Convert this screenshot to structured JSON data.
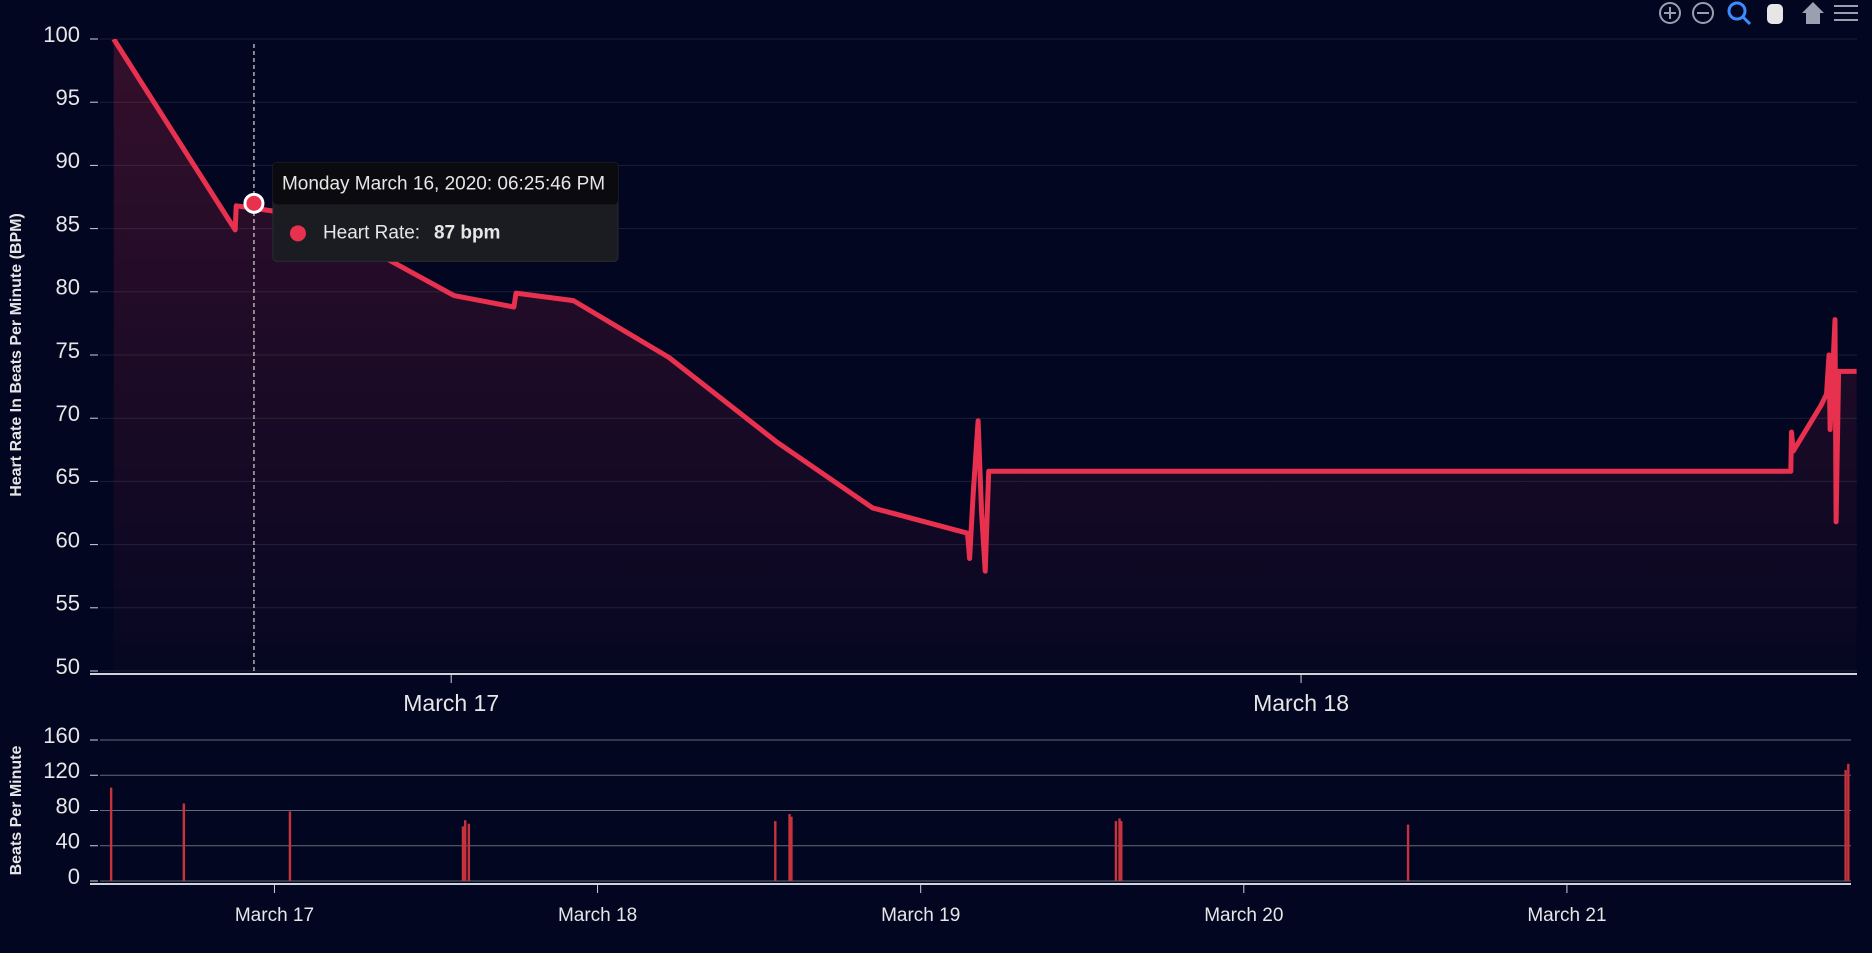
{
  "chart_data": [
    {
      "type": "line",
      "y_label": "Heart Rate In Beats Per Minute (BPM)",
      "x": [
        14.47,
        16.33,
        17.9,
        17.93,
        19.7,
        22.06,
        24.08,
        25.77,
        25.83,
        27.45,
        30.15,
        33.2,
        35.9,
        38.58,
        38.64,
        38.74,
        38.88,
        38.98,
        39.08,
        39.18,
        61.83,
        61.85,
        61.9,
        62.68,
        62.84,
        62.91,
        62.94,
        63.08,
        63.11,
        63.18,
        63.69
      ],
      "values": [
        100,
        91.8,
        84.9,
        86.8,
        86.1,
        82.8,
        79.7,
        78.8,
        79.9,
        79.3,
        74.8,
        68.1,
        62.9,
        60.9,
        58.9,
        63.9,
        69.8,
        62.5,
        57.9,
        65.8,
        65.8,
        68.9,
        67.4,
        71,
        71.9,
        75,
        69.1,
        77.8,
        61.8,
        73.7,
        73.7
      ],
      "color": "#e8304f",
      "xlim": [
        13.8,
        63.7
      ],
      "xticks": [
        {
          "value": 24,
          "label": "March 17"
        },
        {
          "value": 48,
          "label": "March 18"
        }
      ],
      "ylim": [
        50,
        100
      ],
      "yticks": [
        50,
        55,
        60,
        65,
        70,
        75,
        80,
        85,
        90,
        95,
        100
      ],
      "grid": true,
      "tooltip": {
        "title": "Monday March 16, 2020: 06:25:46 PM",
        "label": "Heart Rate:",
        "x": 18.43,
        "value": 87,
        "value_label": "87 bpm"
      }
    },
    {
      "type": "bar",
      "y_label": "Beats Per Minute",
      "x": [
        11.87,
        17.27,
        25.15,
        38.0,
        38.17,
        38.44,
        61.2,
        62.26,
        62.4,
        86.5,
        86.77,
        86.9,
        108.2,
        140.7,
        140.9
      ],
      "values": [
        106,
        88,
        79,
        62,
        69,
        65,
        68,
        76,
        73,
        68,
        71,
        68,
        64,
        126,
        133
      ],
      "color": "#c8323c",
      "xlim": [
        10.3,
        141.1
      ],
      "xticks": [
        {
          "value": 24,
          "label": "March 17"
        },
        {
          "value": 48,
          "label": "March 18"
        },
        {
          "value": 72,
          "label": "March 19"
        },
        {
          "value": 96,
          "label": "March 20"
        },
        {
          "value": 120,
          "label": "March 21"
        }
      ],
      "ylim": [
        0,
        160
      ],
      "yticks": [
        0,
        40,
        80,
        120,
        160
      ],
      "grid": true
    }
  ]
}
